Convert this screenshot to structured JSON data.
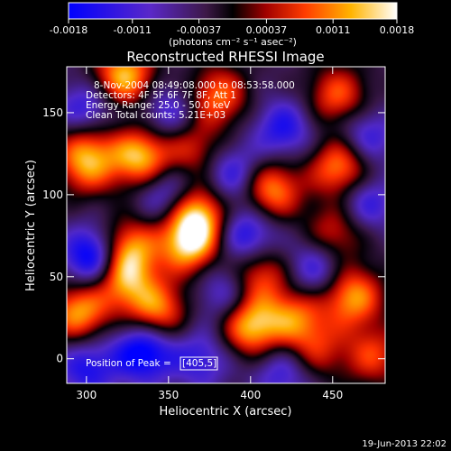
{
  "chart_data": {
    "type": "heatmap",
    "title": "Reconstructed RHESSI Image",
    "xlabel": "Heliocentric X (arcsec)",
    "ylabel": "Heliocentric Y (arcsec)",
    "xlim": [
      288,
      482
    ],
    "ylim": [
      -15,
      178
    ],
    "x_ticks": [
      300,
      350,
      400,
      450
    ],
    "y_ticks": [
      0,
      50,
      100,
      150
    ],
    "colorbar": {
      "range": [
        -0.0018,
        0.0018
      ],
      "ticks": [
        -0.0018,
        -0.0011,
        -0.00037,
        0.00037,
        0.0011,
        0.0018
      ],
      "tick_labels": [
        "-0.0018",
        "-0.0011",
        "-0.00037",
        "0.00037",
        "0.0011",
        "0.0018"
      ],
      "unit": "(photons cm⁻² s⁻¹ asec⁻²)"
    },
    "annotations": [
      "8-Nov-2004 08:49:08.000 to 08:53:58.000",
      "Detectors: 4F 5F 6F 7F 8F, Att 1",
      "Energy Range: 25.0 - 50.0 keV",
      "Clean     Total counts: 5.21E+03"
    ],
    "peak_label": "Position of Peak =",
    "peak_value": "[405,5]",
    "blobs": [
      {
        "x": 323,
        "y": 172,
        "v": 1.0
      },
      {
        "x": 380,
        "y": 160,
        "v": 0.75
      },
      {
        "x": 300,
        "y": 118,
        "v": 0.75
      },
      {
        "x": 333,
        "y": 123,
        "v": 1.0
      },
      {
        "x": 365,
        "y": 128,
        "v": 0.55
      },
      {
        "x": 412,
        "y": 103,
        "v": 0.9
      },
      {
        "x": 455,
        "y": 117,
        "v": 0.9
      },
      {
        "x": 453,
        "y": 160,
        "v": 0.7
      },
      {
        "x": 367,
        "y": 89,
        "v": 1.0
      },
      {
        "x": 363,
        "y": 70,
        "v": 1.0
      },
      {
        "x": 325,
        "y": 67,
        "v": 0.9
      },
      {
        "x": 322,
        "y": 48,
        "v": 0.8
      },
      {
        "x": 405,
        "y": 52,
        "v": 0.7
      },
      {
        "x": 452,
        "y": 77,
        "v": 0.6
      },
      {
        "x": 295,
        "y": 28,
        "v": 0.9
      },
      {
        "x": 343,
        "y": 29,
        "v": 0.85
      },
      {
        "x": 400,
        "y": 20,
        "v": 1.0
      },
      {
        "x": 427,
        "y": 25,
        "v": 0.7
      },
      {
        "x": 462,
        "y": 38,
        "v": 0.9
      },
      {
        "x": 475,
        "y": 2,
        "v": 0.6
      },
      {
        "x": 300,
        "y": 135,
        "v": 0.5
      },
      {
        "x": 440,
        "y": 5,
        "v": 0.5
      },
      {
        "x": 305,
        "y": 62,
        "v": -1.0
      },
      {
        "x": 335,
        "y": 5,
        "v": -0.9
      },
      {
        "x": 300,
        "y": 150,
        "v": -0.7
      },
      {
        "x": 350,
        "y": 100,
        "v": -0.6
      },
      {
        "x": 398,
        "y": 75,
        "v": -0.7
      },
      {
        "x": 420,
        "y": 140,
        "v": -0.6
      },
      {
        "x": 390,
        "y": 112,
        "v": -0.6
      },
      {
        "x": 470,
        "y": 95,
        "v": -0.55
      },
      {
        "x": 350,
        "y": 150,
        "v": -0.5
      },
      {
        "x": 385,
        "y": 40,
        "v": -0.5
      },
      {
        "x": 440,
        "y": 55,
        "v": -0.55
      },
      {
        "x": 470,
        "y": 135,
        "v": -0.55
      },
      {
        "x": 420,
        "y": -8,
        "v": -0.5
      },
      {
        "x": 300,
        "y": -5,
        "v": -0.6
      },
      {
        "x": 370,
        "y": 0,
        "v": -0.5
      }
    ]
  },
  "footer": {
    "date_stamp": "19-Jun-2013 22:02"
  }
}
